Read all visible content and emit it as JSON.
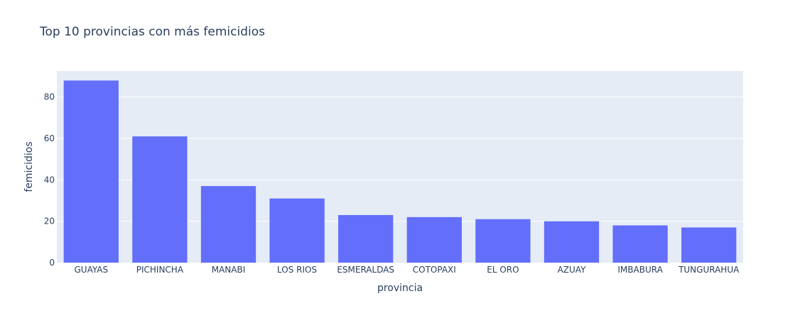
{
  "chart_data": {
    "type": "bar",
    "title": "Top 10 provincias con más femicidios",
    "xlabel": "provincia",
    "ylabel": "femicidios",
    "categories": [
      "GUAYAS",
      "PICHINCHA",
      "MANABI",
      "LOS RIOS",
      "ESMERALDAS",
      "COTOPAXI",
      "EL ORO",
      "AZUAY",
      "IMBABURA",
      "TUNGURAHUA"
    ],
    "values": [
      88,
      61,
      37,
      31,
      23,
      22,
      21,
      20,
      18,
      17
    ],
    "ylim": [
      0,
      92.6
    ],
    "yticks": [
      0,
      20,
      40,
      60,
      80
    ],
    "grid": true,
    "colors": {
      "bar": "#636efa",
      "plot_bg": "#e5ecf6",
      "grid": "#ffffff",
      "text": "#2a3f5f"
    }
  }
}
